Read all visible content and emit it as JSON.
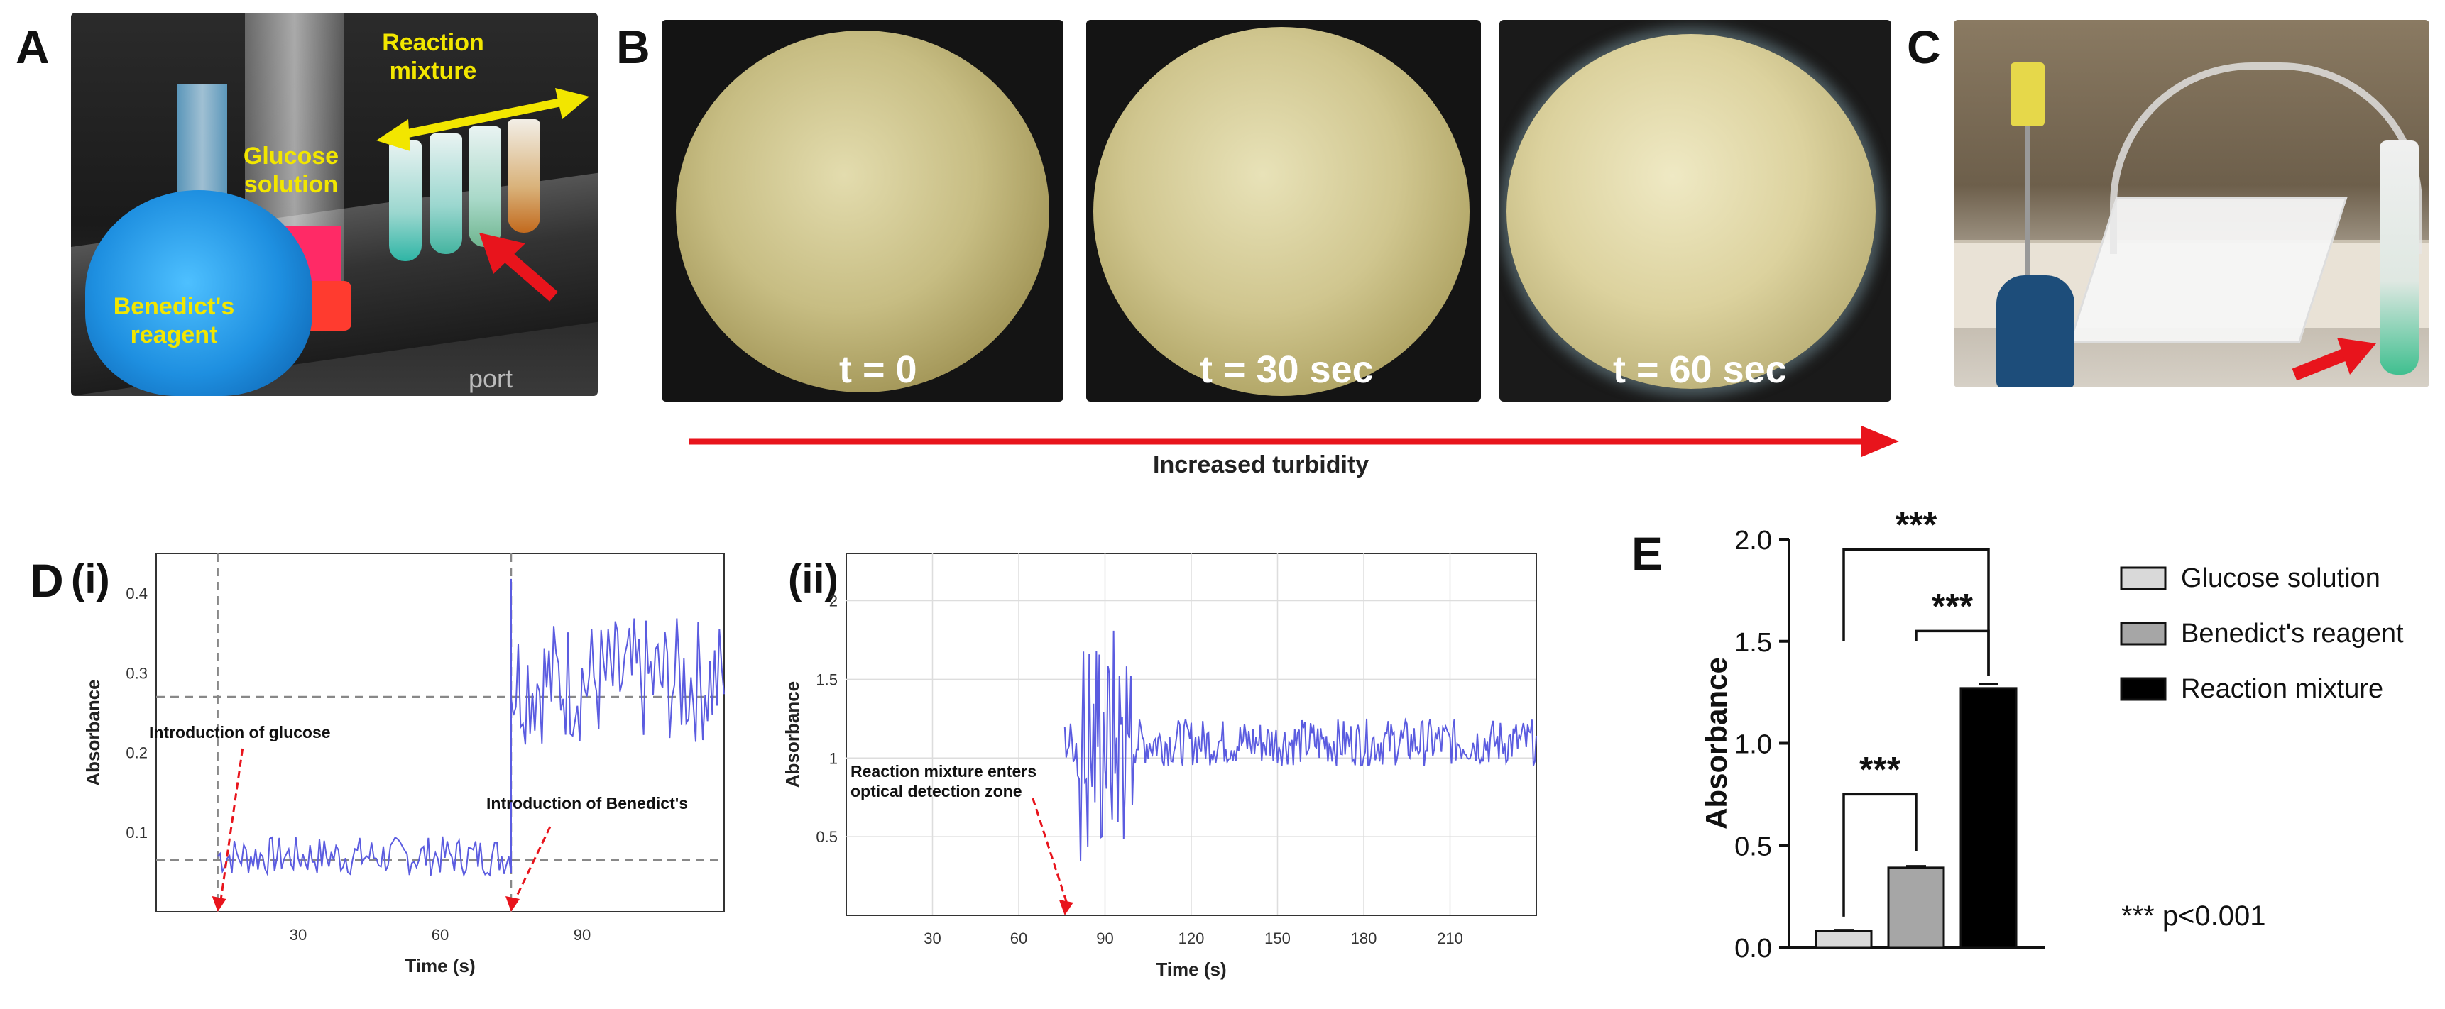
{
  "panels": {
    "A": {
      "letter": "A",
      "labels": {
        "reaction_mixture": "Reaction mixture",
        "glucose_solution": "Glucose solution",
        "benedicts_reagent": "Benedict's reagent",
        "device_text": "port"
      }
    },
    "B": {
      "letter": "B",
      "frames": [
        {
          "label": "t = 0"
        },
        {
          "label": "t = 30 sec"
        },
        {
          "label": "t = 60 sec"
        }
      ],
      "arrow_caption": "Increased turbidity"
    },
    "C": {
      "letter": "C"
    },
    "D": {
      "letter": "D"
    },
    "E": {
      "letter": "E"
    }
  },
  "colors": {
    "label_yellow": "#f2e600",
    "arrow_red": "#e8141c",
    "trace_blue": "#5b5ce0",
    "bar_light": "#d9d9d9",
    "bar_mid": "#a6a6a6",
    "bar_dark": "#000000"
  },
  "chart_data": [
    {
      "id": "D-i",
      "type": "line",
      "panel_label": "(i)",
      "xlabel": "Time (s)",
      "ylabel": "Absorbance",
      "xlim": [
        0,
        120
      ],
      "ylim": [
        0,
        0.45
      ],
      "xticks": [
        30,
        60,
        90
      ],
      "yticks": [
        0.1,
        0.2,
        0.3,
        0.4
      ],
      "dashed_vlines": [
        13,
        75
      ],
      "dashed_hlines": [
        0.065,
        0.27
      ],
      "annotations": [
        {
          "text": "Introduction of  glucose",
          "x": 13,
          "y": 0
        },
        {
          "text": "Introduction of Benedict's",
          "x": 75,
          "y": 0
        }
      ],
      "series": [
        {
          "name": "absorbance",
          "segments": [
            {
              "x0": 13,
              "x1": 75,
              "base": 0.07,
              "amp": 0.025
            },
            {
              "x0": 75,
              "x1": 120,
              "base": 0.29,
              "amp": 0.08
            }
          ]
        }
      ]
    },
    {
      "id": "D-ii",
      "type": "line",
      "panel_label": "(ii)",
      "xlabel": "Time (s)",
      "ylabel": "Absorbance",
      "xlim": [
        0,
        240
      ],
      "ylim": [
        0,
        2.3
      ],
      "xticks": [
        30,
        60,
        90,
        120,
        150,
        180,
        210
      ],
      "yticks": [
        0.5,
        1,
        1.5,
        2
      ],
      "annotations": [
        {
          "text": "Reaction mixture enters optical detection zone",
          "x": 76,
          "y": 0
        }
      ],
      "series": [
        {
          "name": "absorbance",
          "segments": [
            {
              "x0": 76,
              "x1": 240,
              "base": 1.1,
              "amp": 0.15
            }
          ]
        }
      ]
    },
    {
      "id": "E",
      "type": "bar",
      "ylabel": "Absorbance",
      "ylim": [
        0,
        2.0
      ],
      "yticks": [
        "0.0",
        "0.5",
        "1.0",
        "1.5",
        "2.0"
      ],
      "categories": [
        "Glucose solution",
        "Benedict's reagent",
        "Reaction mixture"
      ],
      "values": [
        0.08,
        0.39,
        1.27
      ],
      "errors": [
        0.005,
        0.008,
        0.02
      ],
      "significance": [
        {
          "from": 0,
          "to": 1,
          "label": "***"
        },
        {
          "from": 1,
          "to": 2,
          "label": "***"
        },
        {
          "from": 0,
          "to": 2,
          "label": "***"
        }
      ],
      "legend": [
        "Glucose solution",
        "Benedict's reagent",
        "Reaction mixture"
      ],
      "pvalue_note": "*** p<0.001"
    }
  ]
}
